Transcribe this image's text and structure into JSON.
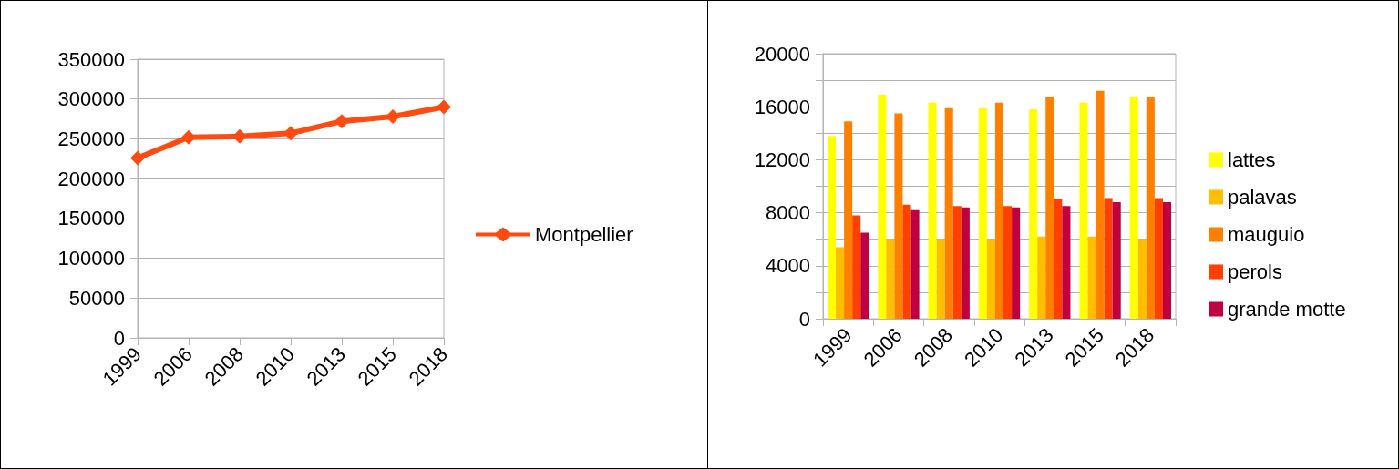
{
  "chart_data": [
    {
      "type": "line",
      "categories": [
        "1999",
        "2006",
        "2008",
        "2010",
        "2013",
        "2015",
        "2018"
      ],
      "series": [
        {
          "name": "Montpellier",
          "color": "#ff4b12",
          "values": [
            226000,
            252000,
            253000,
            257000,
            272000,
            278000,
            290000
          ]
        }
      ],
      "ylim": [
        0,
        350000
      ],
      "yticks": [
        0,
        50000,
        100000,
        150000,
        200000,
        250000,
        300000,
        350000
      ],
      "grid": "y",
      "legend": "right",
      "marker": "diamond",
      "line_style": "solid"
    },
    {
      "type": "bar",
      "categories": [
        "1999",
        "2006",
        "2008",
        "2010",
        "2013",
        "2015",
        "2018"
      ],
      "series": [
        {
          "name": "lattes",
          "color": "#ffff00",
          "values": [
            13800,
            16900,
            16300,
            15900,
            15800,
            16300,
            16700
          ]
        },
        {
          "name": "palavas",
          "color": "#ffbf00",
          "values": [
            5400,
            6000,
            6000,
            6000,
            6200,
            6200,
            6000
          ]
        },
        {
          "name": "mauguio",
          "color": "#ff8000",
          "values": [
            14900,
            15500,
            15900,
            16300,
            16700,
            17200,
            16700
          ]
        },
        {
          "name": "perols",
          "color": "#ff4000",
          "values": [
            7800,
            8600,
            8500,
            8500,
            9000,
            9100,
            9100
          ]
        },
        {
          "name": "grande motte",
          "color": "#c0003f",
          "values": [
            6500,
            8200,
            8400,
            8400,
            8500,
            8800,
            8800
          ]
        }
      ],
      "ylim": [
        0,
        20000
      ],
      "yticks": [
        0,
        {
          "value": 2000,
          "label": null
        },
        4000,
        {
          "value": 6000,
          "label": null
        },
        8000,
        {
          "value": 10000,
          "label": null
        },
        12000,
        {
          "value": 14000,
          "label": null
        },
        16000,
        {
          "value": 18000,
          "label": null
        },
        20000
      ],
      "grid": "y",
      "legend": "right"
    }
  ]
}
